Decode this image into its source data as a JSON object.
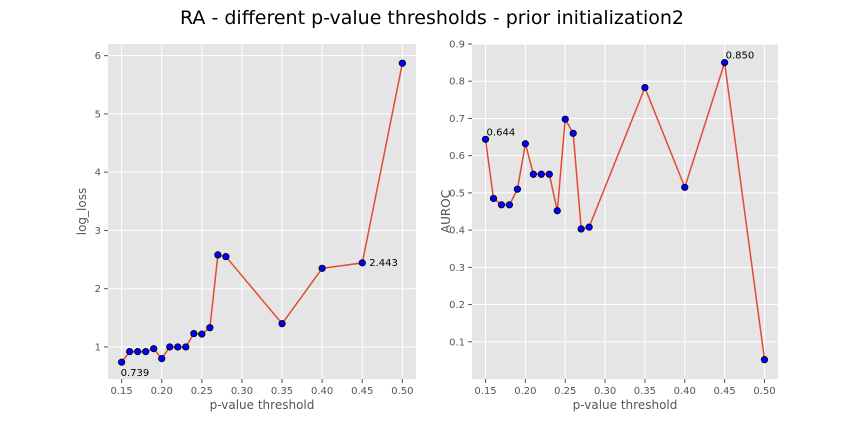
{
  "figure": {
    "title": "RA - different p-value thresholds - prior initialization2"
  },
  "colors": {
    "panel_background": "#e5e5e5",
    "grid": "#ffffff",
    "line": "#e24a33",
    "marker": "#0000ff",
    "marker_edge": "#000000"
  },
  "chart_data": [
    {
      "type": "line",
      "xlabel": "p-value threshold",
      "ylabel": "log_loss",
      "xlim": [
        0.133,
        0.517
      ],
      "ylim": [
        0.45,
        6.2
      ],
      "xticks": [
        "0.15",
        "0.20",
        "0.25",
        "0.30",
        "0.35",
        "0.40",
        "0.45",
        "0.50"
      ],
      "yticks": [
        "1",
        "2",
        "3",
        "4",
        "5",
        "6"
      ],
      "grid": true,
      "x": [
        0.15,
        0.16,
        0.17,
        0.18,
        0.19,
        0.2,
        0.21,
        0.22,
        0.23,
        0.24,
        0.25,
        0.26,
        0.27,
        0.28,
        0.35,
        0.4,
        0.45,
        0.5
      ],
      "y": [
        0.739,
        0.92,
        0.92,
        0.92,
        0.97,
        0.8,
        1.0,
        1.0,
        1.0,
        1.23,
        1.22,
        1.33,
        2.58,
        2.55,
        1.4,
        2.35,
        2.443,
        5.87
      ],
      "annotations": [
        {
          "text": "0.739",
          "x": 0.15,
          "y": 0.739,
          "position": "below-right"
        },
        {
          "text": "2.443",
          "x": 0.45,
          "y": 2.443,
          "position": "right"
        }
      ]
    },
    {
      "type": "line",
      "xlabel": "p-value threshold",
      "ylabel": "AUROC",
      "xlim": [
        0.133,
        0.517
      ],
      "ylim": [
        0.0,
        0.9
      ],
      "xticks": [
        "0.15",
        "0.20",
        "0.25",
        "0.30",
        "0.35",
        "0.40",
        "0.45",
        "0.50"
      ],
      "yticks": [
        "0.1",
        "0.2",
        "0.3",
        "0.4",
        "0.5",
        "0.6",
        "0.7",
        "0.8",
        "0.9"
      ],
      "grid": true,
      "x": [
        0.15,
        0.16,
        0.17,
        0.18,
        0.19,
        0.2,
        0.21,
        0.22,
        0.23,
        0.24,
        0.25,
        0.26,
        0.27,
        0.28,
        0.35,
        0.4,
        0.45,
        0.5
      ],
      "y": [
        0.644,
        0.485,
        0.468,
        0.468,
        0.51,
        0.632,
        0.55,
        0.55,
        0.55,
        0.452,
        0.698,
        0.66,
        0.403,
        0.408,
        0.783,
        0.515,
        0.85,
        0.052
      ],
      "annotations": [
        {
          "text": "0.644",
          "x": 0.15,
          "y": 0.644,
          "position": "above-right"
        },
        {
          "text": "0.850",
          "x": 0.45,
          "y": 0.85,
          "position": "above-right"
        }
      ]
    }
  ]
}
